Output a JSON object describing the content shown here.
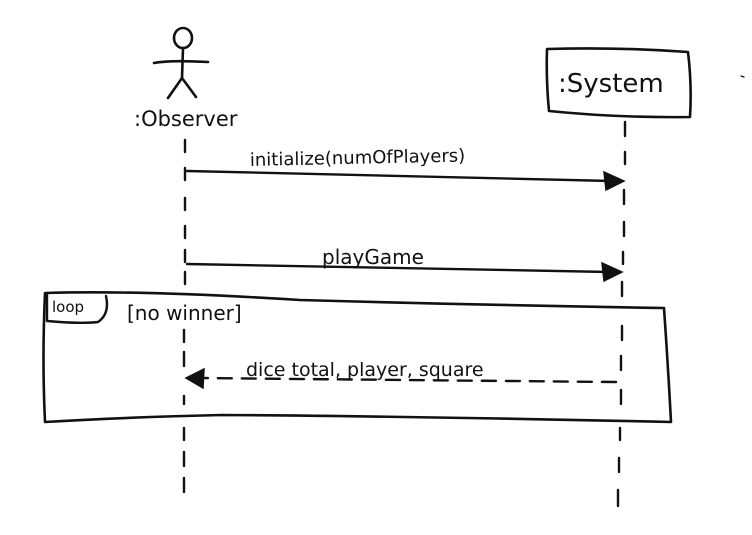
{
  "diagram": {
    "type": "sequence-diagram",
    "ink_color": "#111111",
    "background_color": "#ffffff",
    "actors": [
      {
        "label": ":Observer",
        "kind": "stick-figure"
      },
      {
        "label": ":System",
        "kind": "box"
      }
    ],
    "messages": [
      {
        "label": "initialize(numOfPlayers)",
        "from": ":Observer",
        "to": ":System",
        "style": "solid"
      },
      {
        "label": "playGame",
        "from": ":Observer",
        "to": ":System",
        "style": "solid"
      }
    ],
    "fragment": {
      "operator": "loop",
      "guard": "[no winner]",
      "messages": [
        {
          "label": "dice total, player, square",
          "from": ":System",
          "to": ":Observer",
          "style": "dashed-return"
        }
      ]
    }
  }
}
